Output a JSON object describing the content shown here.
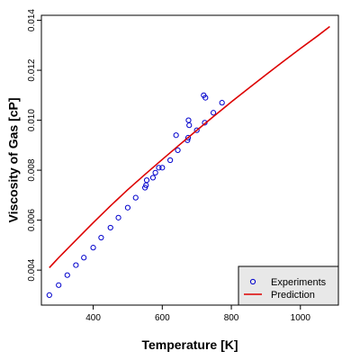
{
  "chart_data": {
    "type": "scatter",
    "xlabel": "Temperature [K]",
    "ylabel": "Viscosity of Gas [cP]",
    "xlim": [
      250,
      1110
    ],
    "ylim": [
      0.0026,
      0.0142
    ],
    "x_ticks": [
      400,
      600,
      800,
      1000
    ],
    "y_ticks": [
      0.004,
      0.006,
      0.008,
      0.01,
      0.012,
      0.014
    ],
    "y_tick_labels": [
      "0.004",
      "0.006",
      "0.008",
      "0.010",
      "0.012",
      "0.014"
    ],
    "grid": false,
    "legend_position": "bottom-right",
    "series": [
      {
        "name": "Experiments",
        "kind": "points",
        "marker": "open-circle",
        "color": "#0000cc",
        "points": [
          [
            273,
            0.003
          ],
          [
            300,
            0.0034
          ],
          [
            325,
            0.0038
          ],
          [
            350,
            0.0042
          ],
          [
            373,
            0.0045
          ],
          [
            400,
            0.0049
          ],
          [
            423,
            0.0053
          ],
          [
            450,
            0.0057
          ],
          [
            473,
            0.0061
          ],
          [
            500,
            0.0065
          ],
          [
            523,
            0.0069
          ],
          [
            550,
            0.0073
          ],
          [
            553,
            0.0074
          ],
          [
            555,
            0.0076
          ],
          [
            573,
            0.0077
          ],
          [
            580,
            0.0079
          ],
          [
            590,
            0.0081
          ],
          [
            600,
            0.0081
          ],
          [
            623,
            0.0084
          ],
          [
            640,
            0.0094
          ],
          [
            645,
            0.0088
          ],
          [
            673,
            0.0092
          ],
          [
            675,
            0.0093
          ],
          [
            676,
            0.01
          ],
          [
            678,
            0.0098
          ],
          [
            700,
            0.0096
          ],
          [
            720,
            0.011
          ],
          [
            723,
            0.0099
          ],
          [
            725,
            0.0109
          ],
          [
            748,
            0.0103
          ],
          [
            773,
            0.0107
          ]
        ]
      },
      {
        "name": "Prediction",
        "kind": "line",
        "color": "#dd0000",
        "points": [
          [
            273,
            0.0041
          ],
          [
            300,
            0.0045
          ],
          [
            350,
            0.0052
          ],
          [
            400,
            0.0059
          ],
          [
            450,
            0.00657
          ],
          [
            500,
            0.00722
          ],
          [
            550,
            0.00783
          ],
          [
            600,
            0.00843
          ],
          [
            650,
            0.00902
          ],
          [
            700,
            0.0096
          ],
          [
            750,
            0.01017
          ],
          [
            800,
            0.01073
          ],
          [
            850,
            0.01128
          ],
          [
            900,
            0.01182
          ],
          [
            950,
            0.01235
          ],
          [
            1000,
            0.01287
          ],
          [
            1050,
            0.01338
          ],
          [
            1085,
            0.01375
          ]
        ]
      }
    ]
  }
}
